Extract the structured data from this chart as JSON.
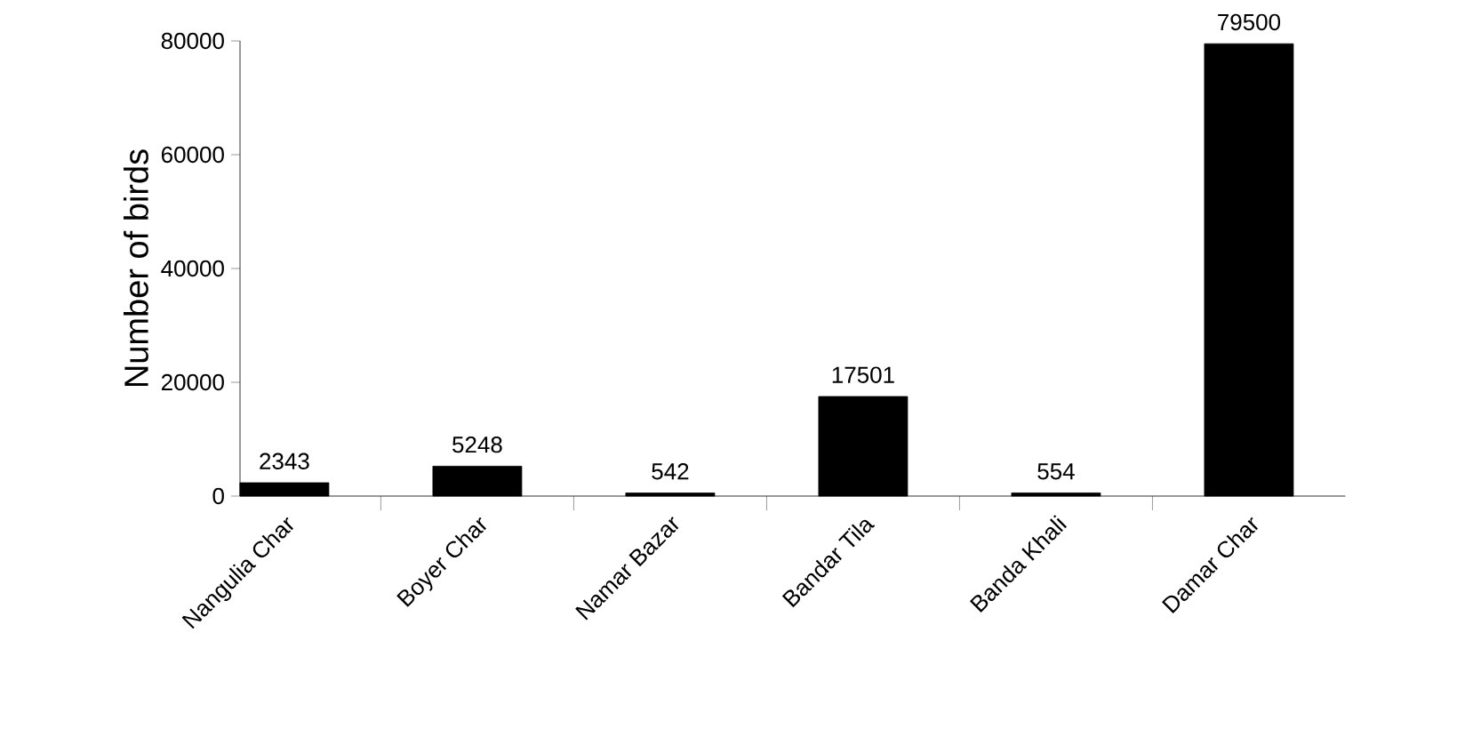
{
  "chart_data": {
    "type": "bar",
    "ylabel": "Number of birds",
    "categories": [
      "Nangulia Char",
      "Boyer Char",
      "Namar Bazar",
      "Bandar Tila",
      "Banda Khali",
      "Damar Char"
    ],
    "values": [
      2343,
      5248,
      542,
      17501,
      554,
      79500
    ],
    "color": "#000000",
    "ylim": [
      0,
      80000
    ],
    "yticks": [
      0,
      20000,
      40000,
      60000,
      80000
    ],
    "data_labels": true
  }
}
